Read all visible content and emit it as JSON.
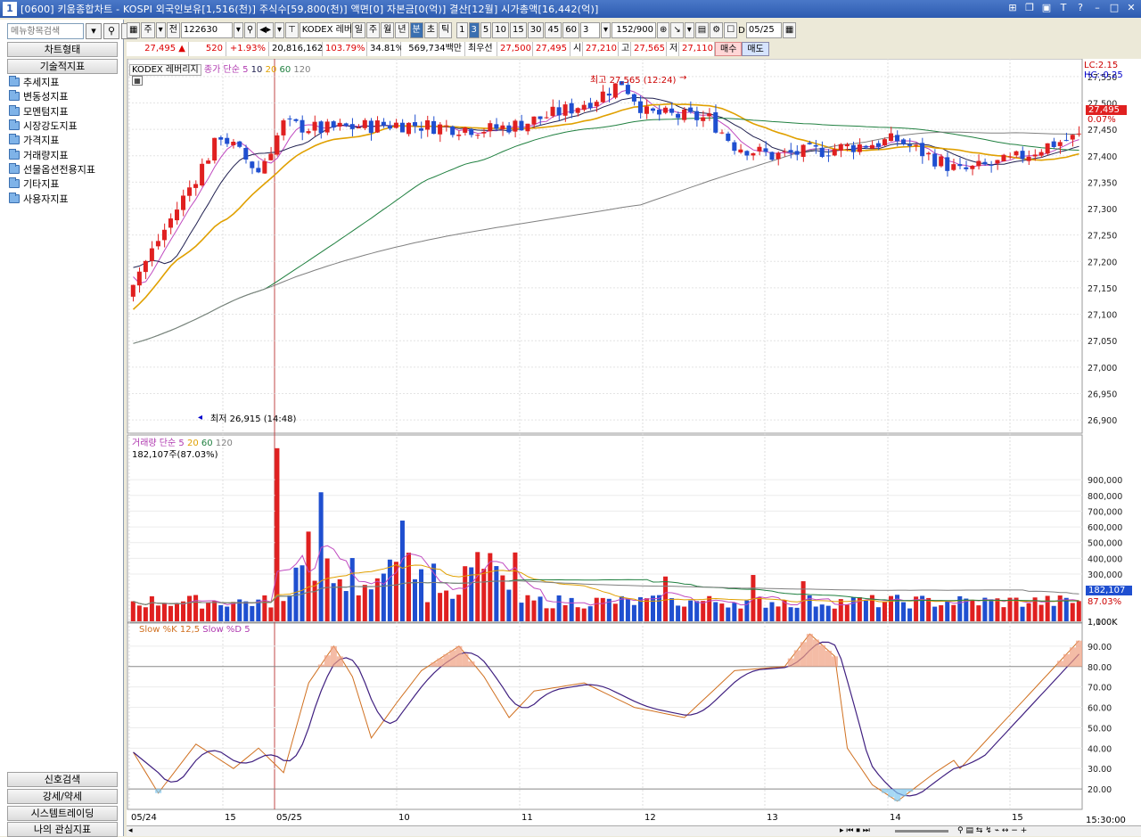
{
  "window": {
    "number": "1",
    "title": "[0600] 키움종합차트 - KOSPI 외국인보유[1,516(천)] 주식수[59,800(천)] 액면[0] 자본금[0(억)] 결산[12월] 시가총액[16,442(억)]"
  },
  "left_panel": {
    "search_placeholder": "메뉴항목검색",
    "chart_type_label": "차트형태",
    "tech_indicator_label": "기술적지표",
    "tree": [
      "추세지표",
      "변동성지표",
      "모멘텀지표",
      "시장강도지표",
      "가격지표",
      "거래량지표",
      "선물옵션전용지표",
      "기타지표",
      "사용자지표"
    ],
    "bottom": [
      "신호검색",
      "강세/약세",
      "시스템트레이딩",
      "나의 관심지표"
    ]
  },
  "toolbar": {
    "period_main": "주",
    "period_all": "전",
    "code": "122630",
    "name": "KODEX 레버",
    "periods": [
      "일",
      "주",
      "월",
      "년",
      "분",
      "초",
      "틱"
    ],
    "selected_period": "분",
    "intervals": [
      "1",
      "3",
      "5",
      "10",
      "15",
      "30",
      "45",
      "60"
    ],
    "selected_interval": "3",
    "count_value": "3",
    "range": "152/900",
    "date": "05/25"
  },
  "infobar": {
    "price": "27,495",
    "change": "520",
    "change_pct": "+1.93%",
    "volume": "20,816,162",
    "vol_ratio": "103.79%",
    "turnover": "34.81%",
    "amount": "569,734백만",
    "best_bid_label": "최우선",
    "best_ask": "27,500",
    "best_bid": "27,495",
    "open_label": "시",
    "open": "27,210",
    "high_label": "고",
    "high": "27,565",
    "low_label": "저",
    "low": "27,110",
    "buy": "매수",
    "sell": "매도"
  },
  "price_panel": {
    "title": "KODEX 레버리지",
    "ma_label": "종가 단순",
    "ma_periods": [
      "5",
      "10",
      "20",
      "60",
      "120"
    ],
    "high_annotation": "최고 27,565 (12:24)",
    "low_annotation": "최저 26,915 (14:48)",
    "lc": "LC:2.15",
    "hc": "HC:-0.25",
    "pct_label": "0.07%",
    "current_price": "27,495",
    "y_ticks": [
      "27,550",
      "27,500",
      "27,450",
      "27,400",
      "27,350",
      "27,300",
      "27,250",
      "27,200",
      "27,150",
      "27,100",
      "27,050",
      "27,000",
      "26,950",
      "26,900"
    ]
  },
  "volume_panel": {
    "title": "거래량",
    "ma_label": "단순",
    "ma_periods": [
      "5",
      "20",
      "60",
      "120"
    ],
    "current": "182,107주(87.03%)",
    "badge": "182,107",
    "badge_pct": "87.03%",
    "y_ticks": [
      "1,100K",
      "1,000K",
      "900,000",
      "800,000",
      "700,000",
      "600,000",
      "500,000",
      "400,000",
      "300,000"
    ]
  },
  "stoch_panel": {
    "k_label": "Slow %K 12,5",
    "d_label": "Slow %D 5",
    "y_ticks": [
      "90.00",
      "80.00",
      "70.00",
      "60.00",
      "50.00",
      "40.00",
      "30.00",
      "20.00"
    ]
  },
  "time_axis": {
    "labels": [
      "05/24",
      "15",
      "05/25",
      "10",
      "11",
      "12",
      "13",
      "14",
      "15"
    ],
    "current_time": "15:30:00"
  },
  "colors": {
    "up": "#e02020",
    "down": "#1f4fd0",
    "ma5": "#c04ac0",
    "ma10": "#202050",
    "ma20": "#e0a000",
    "ma60": "#208040",
    "ma120": "#808080"
  }
}
